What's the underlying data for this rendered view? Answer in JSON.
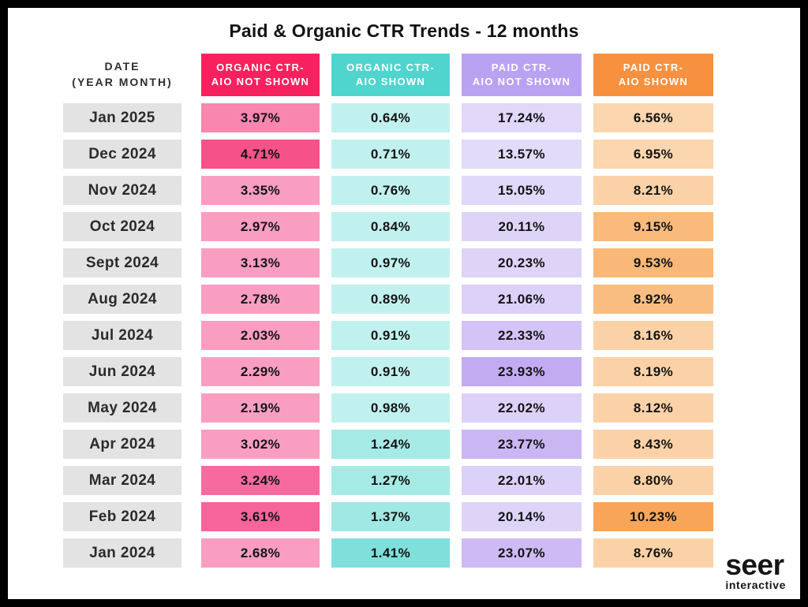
{
  "title": "Paid & Organic CTR Trends - 12 months",
  "columns": [
    {
      "label": "DATE\n(YEAR MONTH)",
      "color": null
    },
    {
      "label": "ORGANIC CTR-\nAIO NOT SHOWN",
      "color": "#F8215F"
    },
    {
      "label": "ORGANIC CTR-\nAIO SHOWN",
      "color": "#4FD5CE"
    },
    {
      "label": "PAID CTR-\nAIO NOT SHOWN",
      "color": "#B9A2F2"
    },
    {
      "label": "PAID CTR-\nAIO SHOWN",
      "color": "#F79140"
    }
  ],
  "rows": [
    {
      "date": "Jan 2025",
      "cells": [
        {
          "value": "3.97%",
          "bg": "#F986AE"
        },
        {
          "value": "0.64%",
          "bg": "#C1F1EE"
        },
        {
          "value": "17.24%",
          "bg": "#E0D7F9"
        },
        {
          "value": "6.56%",
          "bg": "#FCD6AF"
        }
      ]
    },
    {
      "date": "Dec 2024",
      "cells": [
        {
          "value": "4.71%",
          "bg": "#F6528A"
        },
        {
          "value": "0.71%",
          "bg": "#C1F1EE"
        },
        {
          "value": "13.57%",
          "bg": "#E3DBFA"
        },
        {
          "value": "6.95%",
          "bg": "#FCD6AF"
        }
      ]
    },
    {
      "date": "Nov 2024",
      "cells": [
        {
          "value": "3.35%",
          "bg": "#FA9EC1"
        },
        {
          "value": "0.76%",
          "bg": "#C1F1EE"
        },
        {
          "value": "15.05%",
          "bg": "#E1D9F9"
        },
        {
          "value": "8.21%",
          "bg": "#FBD2A8"
        }
      ]
    },
    {
      "date": "Oct 2024",
      "cells": [
        {
          "value": "2.97%",
          "bg": "#FA9EC1"
        },
        {
          "value": "0.84%",
          "bg": "#C1F1EE"
        },
        {
          "value": "20.11%",
          "bg": "#DED4F8"
        },
        {
          "value": "9.15%",
          "bg": "#F9BA7C"
        }
      ]
    },
    {
      "date": "Sept 2024",
      "cells": [
        {
          "value": "3.13%",
          "bg": "#FA9EC1"
        },
        {
          "value": "0.97%",
          "bg": "#C1F1EE"
        },
        {
          "value": "20.23%",
          "bg": "#DED4F8"
        },
        {
          "value": "9.53%",
          "bg": "#F9B877"
        }
      ]
    },
    {
      "date": "Aug 2024",
      "cells": [
        {
          "value": "2.78%",
          "bg": "#FA9EC1"
        },
        {
          "value": "0.89%",
          "bg": "#C1F1EE"
        },
        {
          "value": "21.06%",
          "bg": "#DCD1F8"
        },
        {
          "value": "8.92%",
          "bg": "#F9BD81"
        }
      ]
    },
    {
      "date": "Jul 2024",
      "cells": [
        {
          "value": "2.03%",
          "bg": "#FA9EC1"
        },
        {
          "value": "0.91%",
          "bg": "#C1F1EE"
        },
        {
          "value": "22.33%",
          "bg": "#D3C3F6"
        },
        {
          "value": "8.16%",
          "bg": "#FBD2A8"
        }
      ]
    },
    {
      "date": "Jun 2024",
      "cells": [
        {
          "value": "2.29%",
          "bg": "#FA9EC1"
        },
        {
          "value": "0.91%",
          "bg": "#C1F1EE"
        },
        {
          "value": "23.93%",
          "bg": "#C3ABF2"
        },
        {
          "value": "8.19%",
          "bg": "#FBD2A8"
        }
      ]
    },
    {
      "date": "May 2024",
      "cells": [
        {
          "value": "2.19%",
          "bg": "#FA9EC1"
        },
        {
          "value": "0.98%",
          "bg": "#C1F1EE"
        },
        {
          "value": "22.02%",
          "bg": "#DCD1F8"
        },
        {
          "value": "8.12%",
          "bg": "#FBD2A8"
        }
      ]
    },
    {
      "date": "Apr 2024",
      "cells": [
        {
          "value": "3.02%",
          "bg": "#FA9EC1"
        },
        {
          "value": "1.24%",
          "bg": "#A6EAE6"
        },
        {
          "value": "23.77%",
          "bg": "#CBB6F4"
        },
        {
          "value": "8.43%",
          "bg": "#FBD2A8"
        }
      ]
    },
    {
      "date": "Mar 2024",
      "cells": [
        {
          "value": "3.24%",
          "bg": "#F76AA0"
        },
        {
          "value": "1.27%",
          "bg": "#A6EAE6"
        },
        {
          "value": "22.01%",
          "bg": "#DCD1F8"
        },
        {
          "value": "8.80%",
          "bg": "#FBD2A8"
        }
      ]
    },
    {
      "date": "Feb 2024",
      "cells": [
        {
          "value": "3.61%",
          "bg": "#F7639B"
        },
        {
          "value": "1.37%",
          "bg": "#9FE8E4"
        },
        {
          "value": "20.14%",
          "bg": "#DED4F8"
        },
        {
          "value": "10.23%",
          "bg": "#F8A558"
        }
      ]
    },
    {
      "date": "Jan 2024",
      "cells": [
        {
          "value": "2.68%",
          "bg": "#FA9EC1"
        },
        {
          "value": "1.41%",
          "bg": "#7FE0DB"
        },
        {
          "value": "23.07%",
          "bg": "#CEBAF4"
        },
        {
          "value": "8.76%",
          "bg": "#FBD2A8"
        }
      ]
    }
  ],
  "logo": {
    "name": "seer",
    "subtitle": "interactive"
  },
  "colors": {
    "frame_border": "#000000",
    "background": "#FFFFFF",
    "date_cell_bg": "#E3E3E3",
    "organic_not_shown_header": "#F8215F",
    "organic_shown_header": "#4FD5CE",
    "paid_not_shown_header": "#B9A2F2",
    "paid_shown_header": "#F79140",
    "text": "#131313"
  },
  "chart_data": {
    "type": "table",
    "title": "Paid & Organic CTR Trends - 12 months",
    "columns": [
      "Date (Year Month)",
      "Organic CTR- AIO not shown",
      "Organic CTR- AIO shown",
      "Paid CTR- AIO not shown",
      "Paid CTR- AIO shown"
    ],
    "categories": [
      "Jan 2025",
      "Dec 2024",
      "Nov 2024",
      "Oct 2024",
      "Sept 2024",
      "Aug 2024",
      "Jul 2024",
      "Jun 2024",
      "May 2024",
      "Apr 2024",
      "Mar 2024",
      "Feb 2024",
      "Jan 2024"
    ],
    "series": [
      {
        "name": "Organic CTR- AIO not shown",
        "values": [
          3.97,
          4.71,
          3.35,
          2.97,
          3.13,
          2.78,
          2.03,
          2.29,
          2.19,
          3.02,
          3.24,
          3.61,
          2.68
        ]
      },
      {
        "name": "Organic CTR- AIO shown",
        "values": [
          0.64,
          0.71,
          0.76,
          0.84,
          0.97,
          0.89,
          0.91,
          0.91,
          0.98,
          1.24,
          1.27,
          1.37,
          1.41
        ]
      },
      {
        "name": "Paid CTR- AIO not shown",
        "values": [
          17.24,
          13.57,
          15.05,
          20.11,
          20.23,
          21.06,
          22.33,
          23.93,
          22.02,
          23.77,
          22.01,
          20.14,
          23.07
        ]
      },
      {
        "name": "Paid CTR- AIO shown",
        "values": [
          6.56,
          6.95,
          8.21,
          9.15,
          9.53,
          8.92,
          8.16,
          8.19,
          8.12,
          8.43,
          8.8,
          10.23,
          8.76
        ]
      }
    ],
    "unit": "%",
    "layout_hints": "heatmap-shaded table, darker cell color = higher value within each column, newest month at top"
  }
}
